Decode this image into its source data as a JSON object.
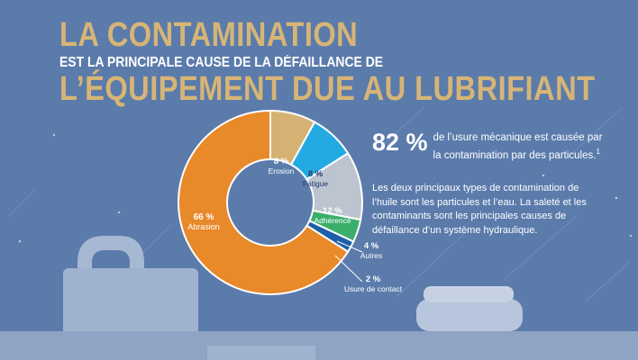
{
  "title": {
    "line1": "LA CONTAMINATION",
    "line2": "EST LA PRINCIPALE CAUSE DE LA DÉFAILLANCE DE",
    "line3": "L’ÉQUIPEMENT DUE AU LUBRIFIANT"
  },
  "stat": {
    "value": "82 %",
    "line1": "de l’usure mécanique est causée par",
    "line2": "la contamination par des particules.",
    "footnote": "1"
  },
  "paragraph": "Les deux principaux types de contamination de l’huile sont les particules et l’eau. La saleté et les contaminants sont les principales causes de défaillance d’un système hydraulique.",
  "colors": {
    "background": "#5b7bab",
    "gold": "#d6b576",
    "abrasion": "#e8892a",
    "erosion": "#d5b274",
    "fatigue": "#24aae2",
    "adherence": "#bcc4d0",
    "autres": "#3aaf6c",
    "usure": "#1d5fa8"
  },
  "chart_data": {
    "type": "pie",
    "donut": true,
    "slices": [
      {
        "label": "Erosion",
        "value": 8,
        "value_label": "8 %",
        "color": "#d5b274"
      },
      {
        "label": "Fatigue",
        "value": 8,
        "value_label": "8 %",
        "color": "#24aae2"
      },
      {
        "label": "Adhérence",
        "value": 12,
        "value_label": "12 %",
        "color": "#bcc4d0"
      },
      {
        "label": "Autres",
        "value": 4,
        "value_label": "4 %",
        "color": "#3aaf6c"
      },
      {
        "label": "Usure de contact",
        "value": 2,
        "value_label": "2 %",
        "color": "#1d5fa8"
      },
      {
        "label": "Abrasion",
        "value": 66,
        "value_label": "66 %",
        "color": "#e8892a"
      }
    ]
  }
}
